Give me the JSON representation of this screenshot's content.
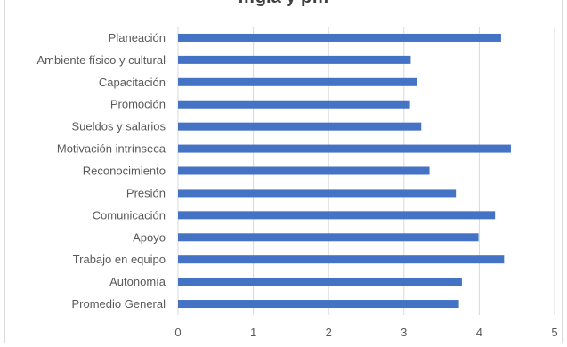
{
  "chart_data": {
    "type": "bar",
    "orientation": "horizontal",
    "title": "…gía y p…",
    "categories": [
      "Planeación",
      "Ambiente físico y cultural",
      "Capacitación",
      "Promoción",
      "Sueldos y salarios",
      "Motivación intrínseca",
      "Reconocimiento",
      "Presión",
      "Comunicación",
      "Apoyo",
      "Trabajo en equipo",
      "Autonomía",
      "Promedio General"
    ],
    "series": [
      {
        "values": [
          4.29,
          3.09,
          3.17,
          3.08,
          3.23,
          4.42,
          3.34,
          3.69,
          4.21,
          3.99,
          4.33,
          3.77,
          3.73
        ]
      }
    ],
    "xlim": [
      0,
      5
    ],
    "xticks": [
      "0",
      "1",
      "2",
      "3",
      "4",
      "5"
    ],
    "grid": "vertical",
    "bar_color": "#4472c4",
    "grid_color": "#d9d9d9"
  }
}
